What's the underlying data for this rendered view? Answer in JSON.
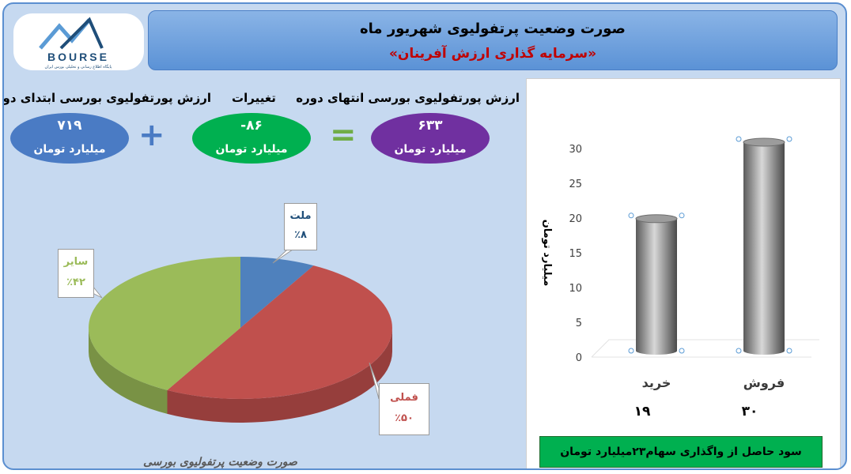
{
  "header": {
    "title": "صورت وضعیت پرتفولیوی شهریور ماه",
    "subtitle": "«سرمایه گذاری ارزش آفرینان»"
  },
  "logo": {
    "text": "BOURSE",
    "tagline": "پایگاه اطلاع رسانی و تحلیلی بورس ایران"
  },
  "summary": {
    "start_label": "ارزش پورتفولیوی بورسی ابتدای دوره",
    "start_value": "۷۱۹",
    "change_label": "تغییرات",
    "change_value": "-۸۶",
    "end_label": "ارزش پورتفولیوی بورسی انتهای دوره",
    "end_value": "۶۳۳",
    "unit": "میلیارد تومان",
    "plus_sign": "+",
    "equals_sign": "=",
    "colors": {
      "start": "#4a7bc4",
      "change": "#00b050",
      "end": "#7030a0"
    }
  },
  "pie_caption": "صورت وضعیت پرتفولیوی بورسی",
  "chart_data": [
    {
      "type": "pie",
      "title": "",
      "slices": [
        {
          "label": "ملت",
          "value": 8,
          "value_text": "٪۸",
          "color": "#4f81bd"
        },
        {
          "label": "فملی",
          "value": 50,
          "value_text": "٪۵۰",
          "color": "#c0504d"
        },
        {
          "label": "سایر",
          "value": 42,
          "value_text": "٪۴۲",
          "color": "#9bbb59"
        }
      ],
      "legend": "none"
    },
    {
      "type": "bar",
      "title": "",
      "categories": [
        "خرید",
        "فروش"
      ],
      "values": [
        19,
        30
      ],
      "value_labels": [
        "۱۹",
        "۳۰"
      ],
      "ylabel": "میلیارد تومان",
      "ylim": [
        0,
        30
      ],
      "yticks": [
        0,
        5,
        10,
        15,
        20,
        25,
        30
      ],
      "bar_color": "#8c8c8c",
      "grid": false
    }
  ],
  "bar_note": "سود حاصل از واگذاری سهام۲۳میلیارد تومان"
}
